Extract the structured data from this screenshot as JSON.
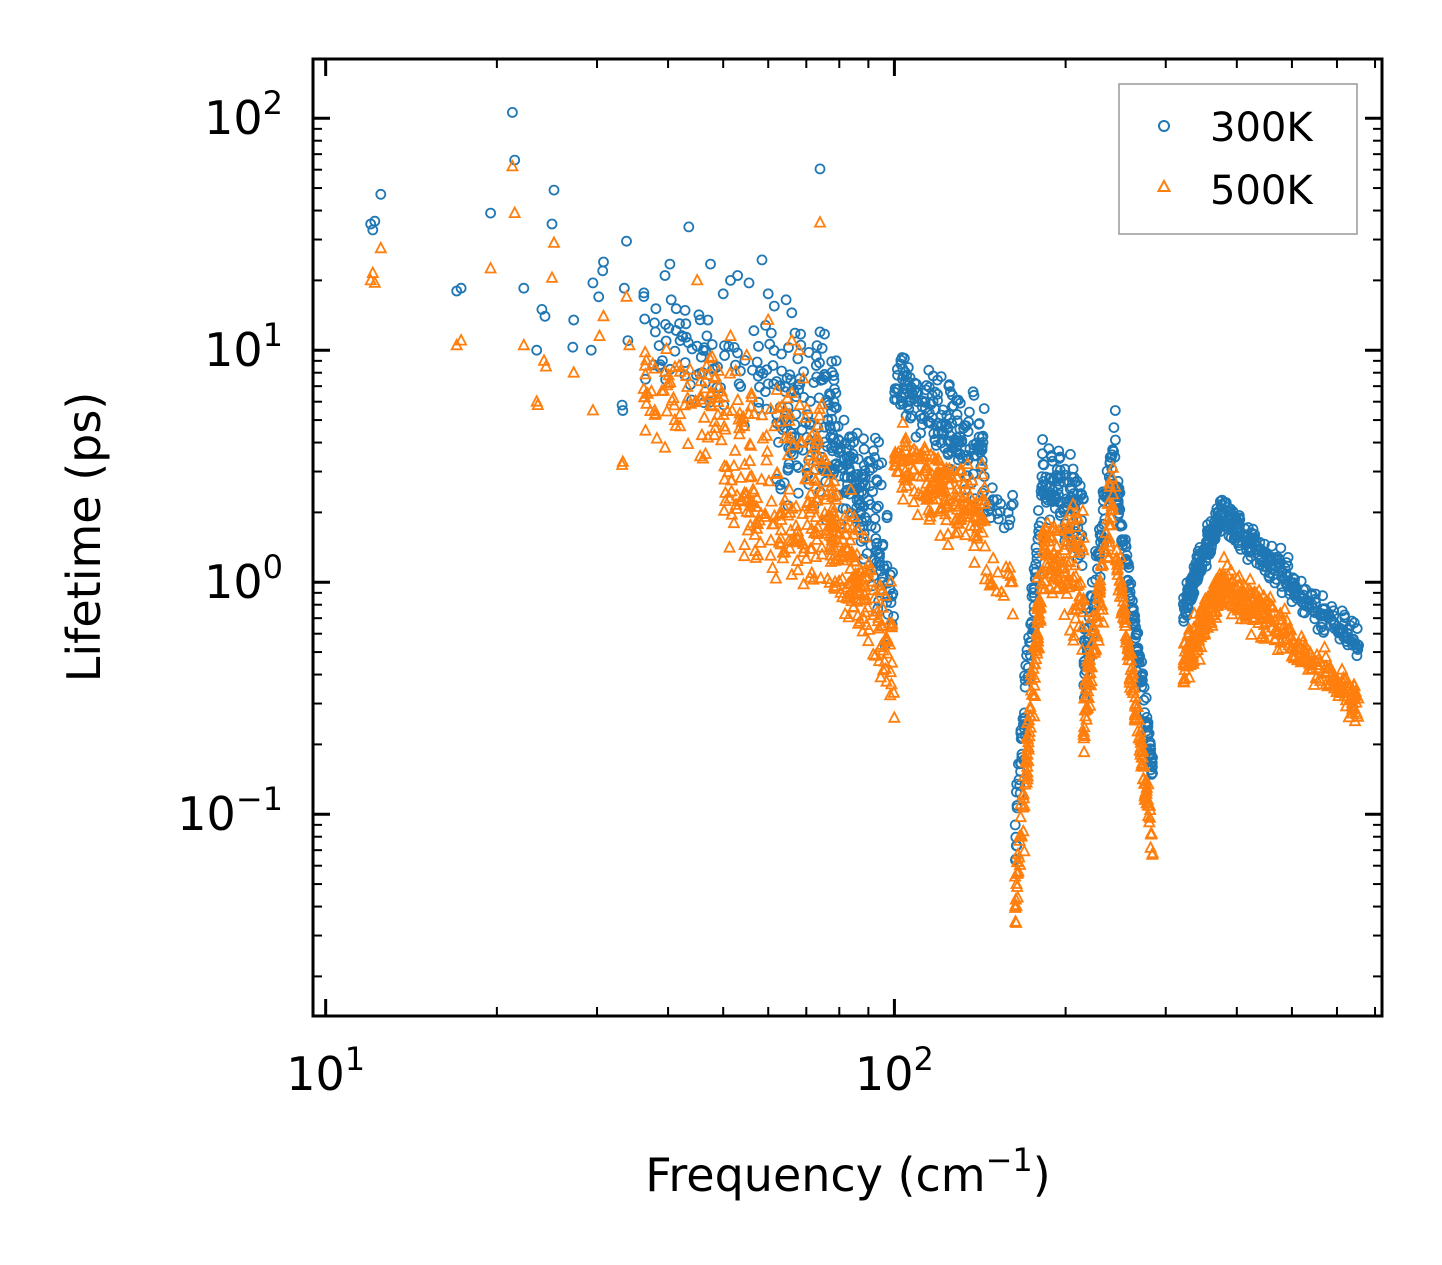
{
  "chart_data": {
    "type": "scatter",
    "title": "",
    "xlabel": "Frequency (cm",
    "xlabel_sup": "−1",
    "xlabel_close": ")",
    "ylabel": "Lifetime (ps)",
    "xscale": "log",
    "yscale": "log",
    "xlim": [
      9.5,
      720
    ],
    "ylim": [
      0.0135,
      180
    ],
    "x_ticks": [
      {
        "value": 10,
        "base": "10",
        "exp": "1"
      },
      {
        "value": 100,
        "base": "10",
        "exp": "2"
      }
    ],
    "y_ticks": [
      {
        "value": 0.1,
        "base": "10",
        "exp": "−1"
      },
      {
        "value": 1,
        "base": "10",
        "exp": "0"
      },
      {
        "value": 10,
        "base": "10",
        "exp": "1"
      },
      {
        "value": 100,
        "base": "10",
        "exp": "2"
      }
    ],
    "legend_position": "top-right",
    "series": [
      {
        "name": "300K",
        "marker": "circle",
        "color": "#1f77b4",
        "points": [
          [
            12.0,
            35
          ],
          [
            12.1,
            33
          ],
          [
            12.2,
            36
          ],
          [
            12.5,
            47
          ],
          [
            17.0,
            18
          ],
          [
            17.3,
            18.5
          ],
          [
            19.5,
            39
          ],
          [
            21.3,
            106
          ],
          [
            21.5,
            66
          ],
          [
            22.3,
            18.5
          ],
          [
            23.5,
            10
          ],
          [
            24.0,
            15
          ],
          [
            24.3,
            14
          ],
          [
            25.2,
            49
          ],
          [
            25.0,
            35
          ],
          [
            27.3,
            13.5
          ],
          [
            27.2,
            10.3
          ],
          [
            29.3,
            10
          ],
          [
            29.5,
            19.5
          ],
          [
            30.2,
            17
          ],
          [
            30.8,
            24
          ],
          [
            30.7,
            22
          ],
          [
            33.3,
            5.5
          ],
          [
            33.2,
            5.8
          ],
          [
            33.8,
            29.5
          ],
          [
            33.5,
            18.5
          ],
          [
            34.0,
            11
          ],
          [
            36.5,
            7.5
          ],
          [
            38.0,
            12
          ],
          [
            39.5,
            21
          ],
          [
            40.3,
            23.5
          ],
          [
            40.5,
            16.5
          ],
          [
            42.0,
            11
          ],
          [
            43.5,
            34
          ],
          [
            43.0,
            13
          ],
          [
            47.0,
            13.5
          ],
          [
            47.5,
            23.5
          ],
          [
            50.0,
            17.5
          ],
          [
            51.5,
            20
          ],
          [
            53.0,
            21
          ],
          [
            55.5,
            19.5
          ],
          [
            58.5,
            24.5
          ],
          [
            60.0,
            17.5
          ],
          [
            61.5,
            15.5
          ],
          [
            64.5,
            16.5
          ],
          [
            66.0,
            14.5
          ],
          [
            74.0,
            60.5
          ],
          [
            74.0,
            12
          ],
          [
            79.0,
            9
          ]
        ],
        "clusters": [
          {
            "x": [
              36,
              80
            ],
            "y_start": [
              10,
              11
            ],
            "y_end": [
              6.5,
              7.5
            ],
            "spread": 0.28,
            "n": 130
          },
          {
            "x": [
              62,
              95
            ],
            "y_start": [
              5.5,
              3.5
            ],
            "y_end": [
              2.2,
              2.8
            ],
            "spread": 0.3,
            "n": 140
          },
          {
            "x": [
              76,
              100
            ],
            "y_start": [
              5.5,
              5.5
            ],
            "y_end": [
              1.0,
              0.7
            ],
            "spread": 0.3,
            "n": 110
          },
          {
            "x": [
              100,
              145
            ],
            "y_start": [
              7.5,
              7.0
            ],
            "y_end": [
              4.5,
              2.4
            ],
            "spread": 0.2,
            "n": 190
          },
          {
            "x": [
              145,
              162
            ],
            "y_start": [
              2.4,
              2.4
            ],
            "y_end": [
              1.8,
              1.8
            ],
            "spread": 0.15,
            "n": 20
          },
          {
            "x": [
              163,
              182
            ],
            "y_start": [
              0.06,
              0.12
            ],
            "y_end": [
              2.2,
              3.0
            ],
            "spread": 0.15,
            "n": 80
          },
          {
            "x": [
              182,
              215
            ],
            "y_start": [
              2.8,
              3.2
            ],
            "y_end": [
              1.2,
              3.0
            ],
            "spread": 0.2,
            "n": 110
          },
          {
            "x": [
              215,
              245
            ],
            "y_start": [
              0.4,
              0.4
            ],
            "y_end": [
              4.5,
              4.5
            ],
            "spread": 0.25,
            "n": 90
          },
          {
            "x": [
              245,
              285
            ],
            "y_start": [
              2.8,
              2.8
            ],
            "y_end": [
              0.14,
              0.16
            ],
            "spread": 0.12,
            "n": 120
          },
          {
            "x": [
              322,
              375
            ],
            "y_start": [
              0.8,
              0.8
            ],
            "y_end": [
              1.9,
              2.1
            ],
            "spread": 0.1,
            "n": 150
          },
          {
            "x": [
              375,
              495
            ],
            "y_start": [
              2.0,
              2.0
            ],
            "y_end": [
              1.0,
              1.0
            ],
            "spread": 0.12,
            "n": 150
          },
          {
            "x": [
              495,
              655
            ],
            "y_start": [
              0.95,
              0.95
            ],
            "y_end": [
              0.55,
              0.55
            ],
            "spread": 0.1,
            "n": 110
          }
        ]
      },
      {
        "name": "500K",
        "marker": "triangle",
        "color": "#ff7f0e",
        "points": [
          [
            12.0,
            20
          ],
          [
            12.1,
            21.5
          ],
          [
            12.2,
            19.5
          ],
          [
            12.5,
            27.5
          ],
          [
            17.0,
            10.5
          ],
          [
            17.3,
            11
          ],
          [
            19.5,
            22.5
          ],
          [
            21.3,
            62
          ],
          [
            21.5,
            39
          ],
          [
            22.3,
            10.5
          ],
          [
            23.5,
            6
          ],
          [
            23.6,
            5.8
          ],
          [
            24.2,
            9
          ],
          [
            24.4,
            8.5
          ],
          [
            25.2,
            29
          ],
          [
            25.0,
            20.5
          ],
          [
            27.3,
            8
          ],
          [
            29.5,
            5.5
          ],
          [
            30.3,
            11.5
          ],
          [
            30.8,
            14
          ],
          [
            33.3,
            3.3
          ],
          [
            33.2,
            3.2
          ],
          [
            33.8,
            17
          ],
          [
            34.2,
            10.5
          ],
          [
            36.5,
            4.5
          ],
          [
            39.5,
            3.8
          ],
          [
            42.0,
            4.7
          ],
          [
            45.0,
            20
          ],
          [
            47.0,
            4.2
          ],
          [
            47.5,
            5.8
          ],
          [
            51.5,
            11.5
          ],
          [
            55.0,
            9.5
          ],
          [
            60.0,
            13.5
          ],
          [
            74.0,
            35.5
          ],
          [
            66.0,
            11
          ],
          [
            68.0,
            10
          ]
        ],
        "clusters": [
          {
            "x": [
              36,
              75
            ],
            "y_start": [
              7,
              6
            ],
            "y_end": [
              4.5,
              4.5
            ],
            "spread": 0.3,
            "n": 140
          },
          {
            "x": [
              50,
              90
            ],
            "y_start": [
              3,
              2.2
            ],
            "y_end": [
              1.2,
              0.8
            ],
            "spread": 0.3,
            "n": 160
          },
          {
            "x": [
              70,
              100
            ],
            "y_start": [
              3.2,
              2.6
            ],
            "y_end": [
              0.6,
              0.4
            ],
            "spread": 0.35,
            "n": 170
          },
          {
            "x": [
              100,
              145
            ],
            "y_start": [
              3.5,
              3.5
            ],
            "y_end": [
              2.4,
              1.4
            ],
            "spread": 0.22,
            "n": 210
          },
          {
            "x": [
              145,
              162
            ],
            "y_start": [
              1.1,
              1.1
            ],
            "y_end": [
              0.9,
              0.9
            ],
            "spread": 0.15,
            "n": 18
          },
          {
            "x": [
              163,
              182
            ],
            "y_start": [
              0.03,
              0.05
            ],
            "y_end": [
              0.9,
              1.4
            ],
            "spread": 0.18,
            "n": 110
          },
          {
            "x": [
              182,
              215
            ],
            "y_start": [
              1.2,
              1.5
            ],
            "y_end": [
              0.6,
              1.8
            ],
            "spread": 0.22,
            "n": 120
          },
          {
            "x": [
              215,
              245
            ],
            "y_start": [
              0.25,
              0.25
            ],
            "y_end": [
              2.8,
              2.8
            ],
            "spread": 0.25,
            "n": 100
          },
          {
            "x": [
              245,
              285
            ],
            "y_start": [
              1.4,
              1.4
            ],
            "y_end": [
              0.065,
              0.075
            ],
            "spread": 0.13,
            "n": 130
          },
          {
            "x": [
              322,
              375
            ],
            "y_start": [
              0.4,
              0.5
            ],
            "y_end": [
              0.9,
              1.0
            ],
            "spread": 0.13,
            "n": 160
          },
          {
            "x": [
              375,
              495
            ],
            "y_start": [
              1.0,
              1.0
            ],
            "y_end": [
              0.6,
              0.6
            ],
            "spread": 0.14,
            "n": 160
          },
          {
            "x": [
              495,
              655
            ],
            "y_start": [
              0.55,
              0.55
            ],
            "y_end": [
              0.3,
              0.3
            ],
            "spread": 0.12,
            "n": 120
          }
        ]
      }
    ]
  }
}
